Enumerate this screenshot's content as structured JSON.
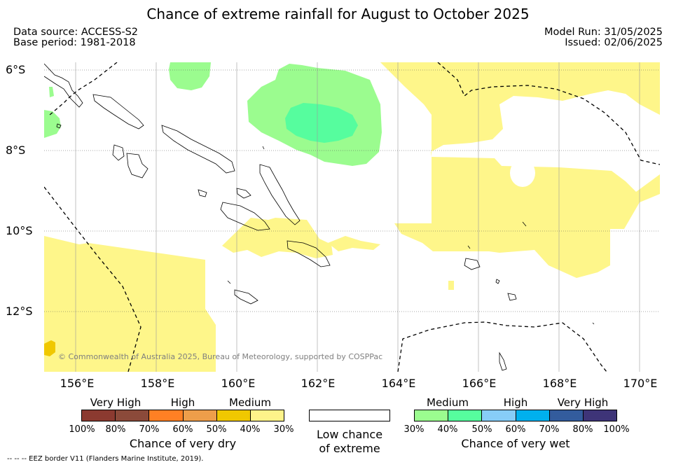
{
  "title": "Chance of extreme rainfall for August to October 2025",
  "data_source": "Data source: ACCESS-S2",
  "base_period": "Base period: 1981-2018",
  "model_run": "Model Run: 31/05/2025",
  "issued": "Issued: 02/06/2025",
  "map": {
    "lon_range": [
      155.2,
      170.5
    ],
    "lat_range": [
      -5.8,
      -13.5
    ],
    "lat_labels": [
      "6°S",
      "8°S",
      "10°S",
      "12°S"
    ],
    "lon_labels": [
      "156°E",
      "158°E",
      "160°E",
      "162°E",
      "164°E",
      "166°E",
      "168°E",
      "170°E"
    ],
    "copyright": "© Commonwealth of Australia 2025, Bureau of Meteorology, supported by COSPPac"
  },
  "dry_legend": {
    "categories": [
      "Very High",
      "High",
      "Medium"
    ],
    "colors": [
      "#8b3a30",
      "#8b4a3a",
      "#ff8024",
      "#ee9e4a",
      "#f0c800",
      "#fef38a"
    ],
    "ticks": [
      "100%",
      "80%",
      "70%",
      "60%",
      "50%",
      "40%",
      "30%"
    ],
    "label": "Chance of very dry"
  },
  "neutral_legend": {
    "label_line1": "Low chance",
    "label_line2": "of extreme"
  },
  "wet_legend": {
    "categories": [
      "Medium",
      "High",
      "Very High"
    ],
    "colors": [
      "#9bfc8f",
      "#56fd9e",
      "#87cdf8",
      "#00b0ee",
      "#335c9d",
      "#3e3478"
    ],
    "ticks": [
      "30%",
      "40%",
      "50%",
      "60%",
      "70%",
      "80%",
      "100%"
    ],
    "label": "Chance of very wet"
  },
  "footer": "--  --  -- EEZ border V11 (Flanders Marine Institute, 2019)."
}
